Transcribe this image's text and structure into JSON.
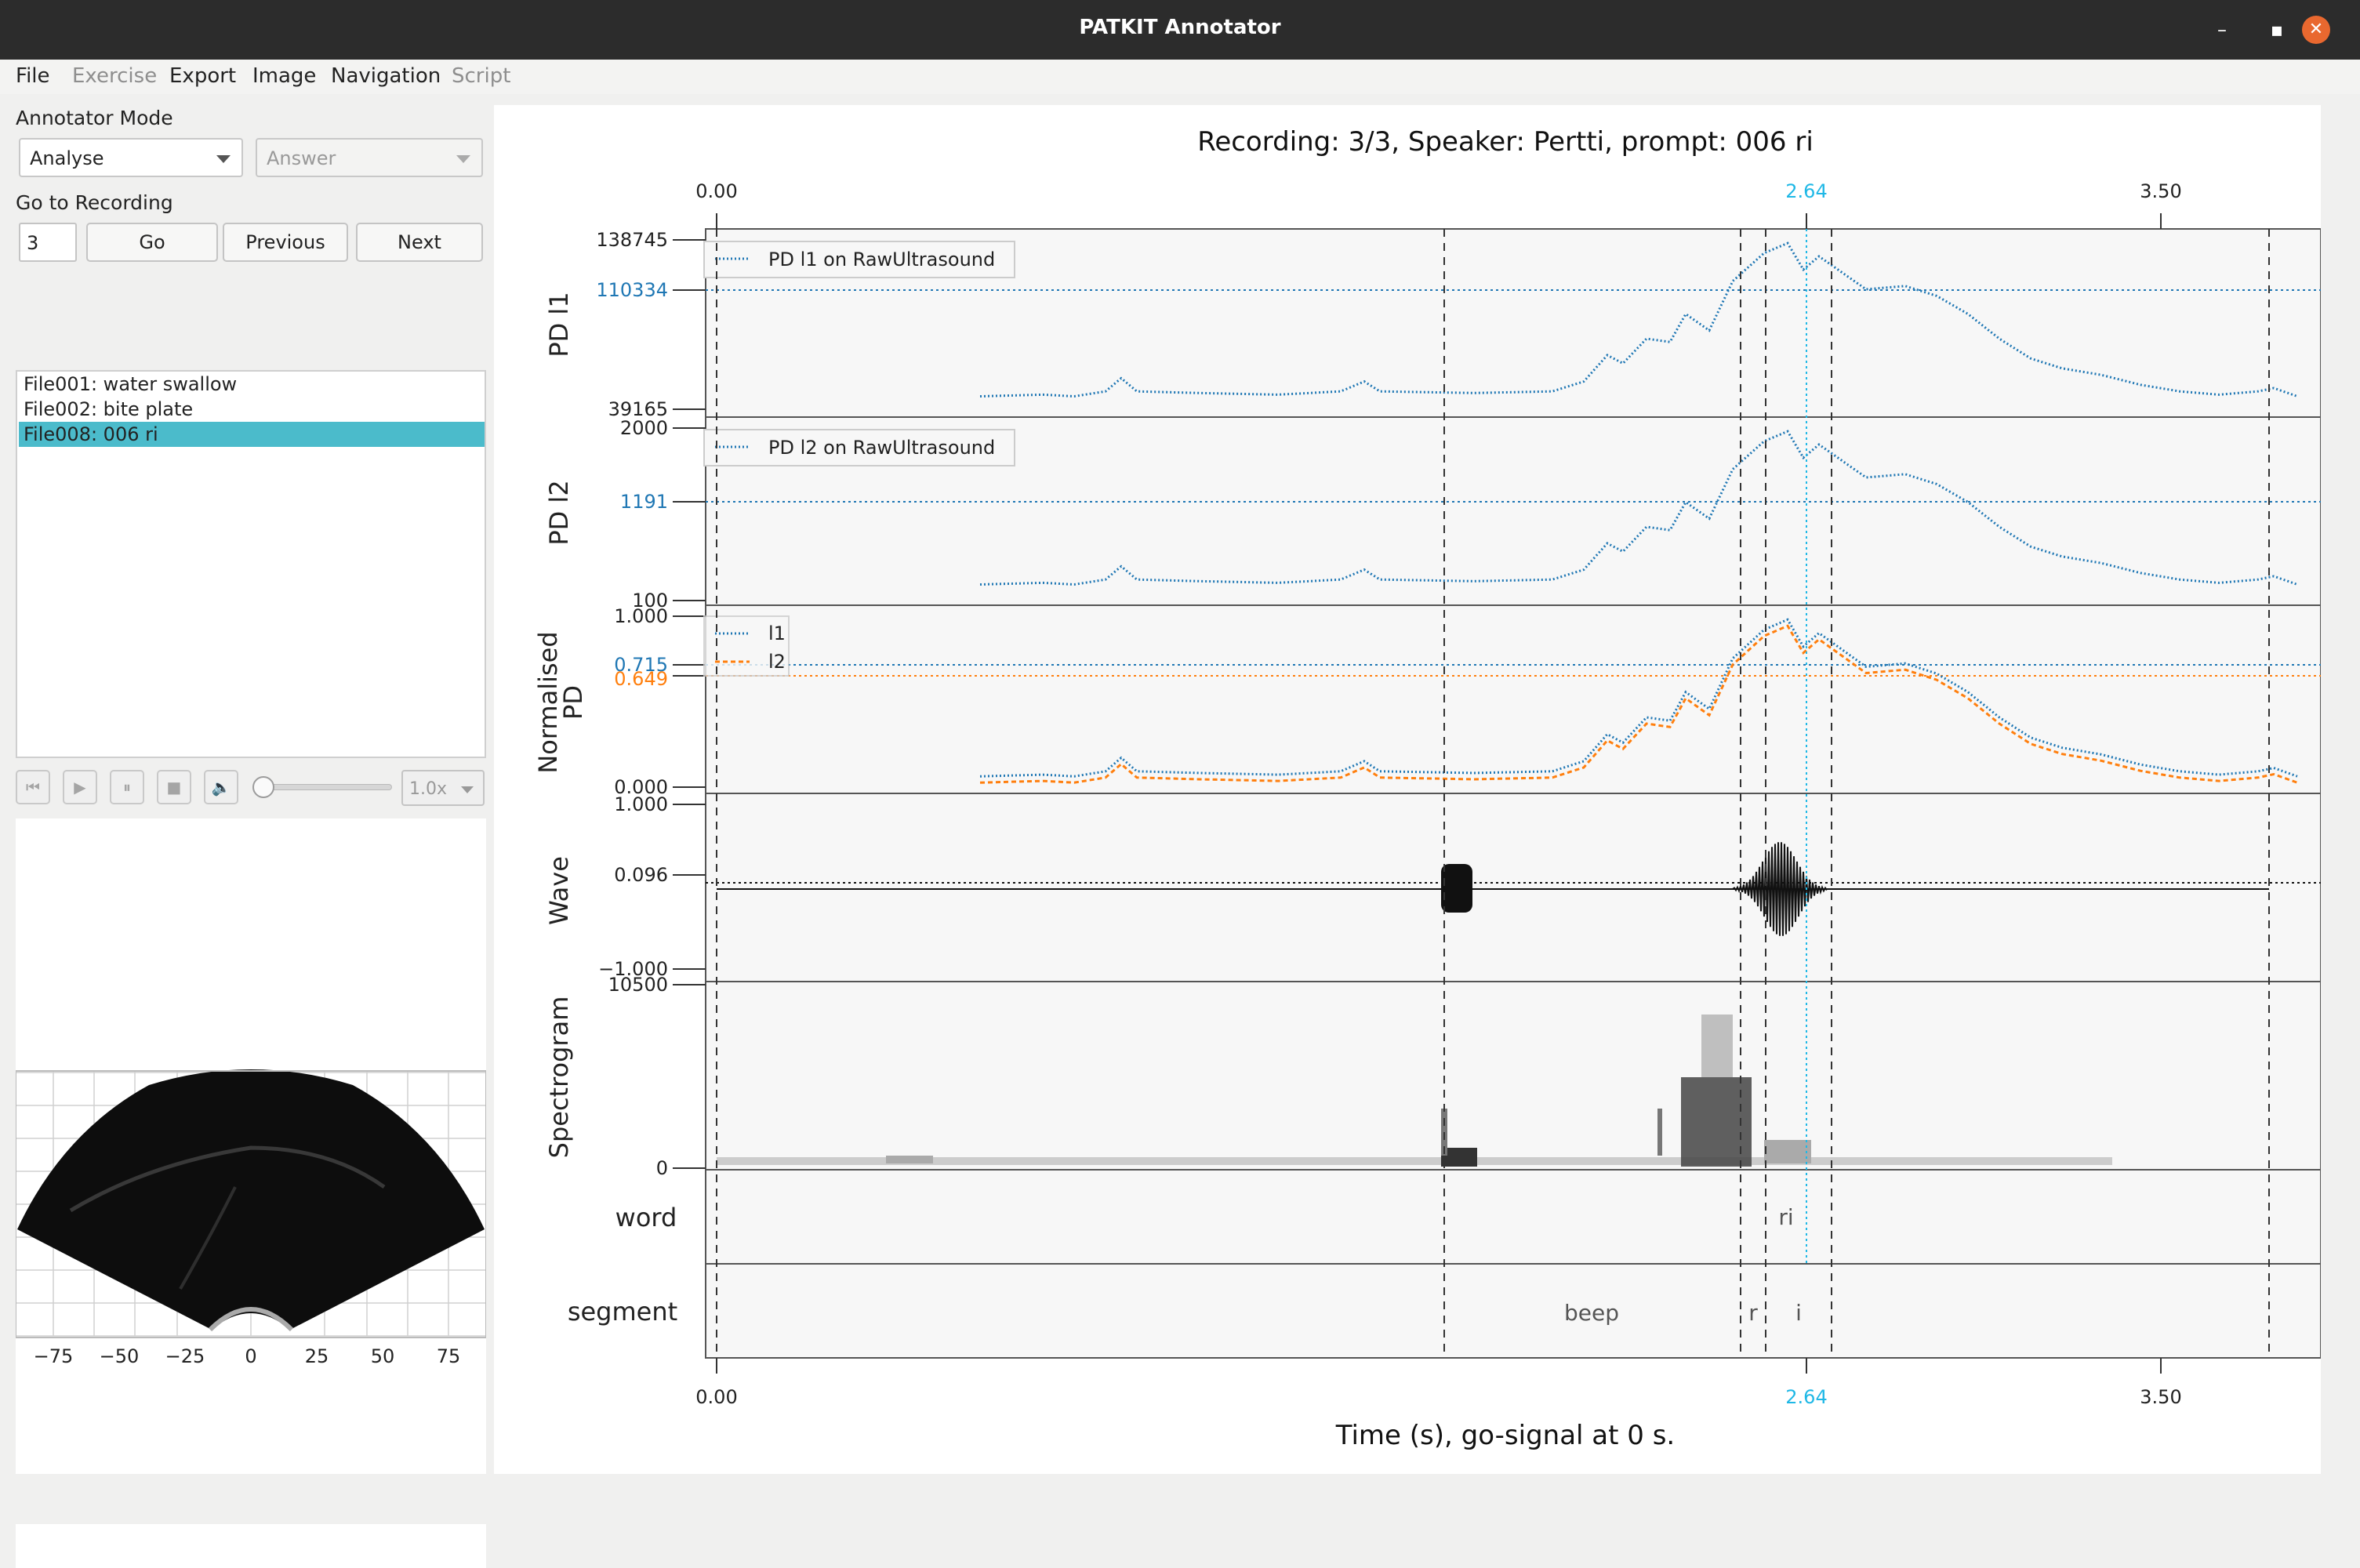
{
  "window": {
    "title": "PATKIT Annotator"
  },
  "menubar": [
    {
      "label": "File",
      "enabled": true
    },
    {
      "label": "Exercise",
      "enabled": false
    },
    {
      "label": "Export",
      "enabled": true
    },
    {
      "label": "Image",
      "enabled": true
    },
    {
      "label": "Navigation",
      "enabled": true
    },
    {
      "label": "Script",
      "enabled": false
    }
  ],
  "left": {
    "annotator_mode_label": "Annotator Mode",
    "mode_value": "Analyse",
    "answer_value": "Answer",
    "goto_label": "Go to Recording",
    "goto_value": "3",
    "go_label": "Go",
    "previous_label": "Previous",
    "next_label": "Next",
    "files": [
      "File001: water swallow",
      "File002: bite plate",
      "File008: 006   ri"
    ],
    "selected_index": 2,
    "speed": "1.0x",
    "ultrasound_ticks": [
      "−75",
      "−50",
      "−25",
      "0",
      "25",
      "50",
      "75"
    ]
  },
  "plot": {
    "title": "Recording: 3/3, Speaker: Pertti, prompt: 006   ri",
    "xlabel": "Time (s), go-signal at 0 s.",
    "xticks": [
      "0.00",
      "2.64",
      "3.50"
    ],
    "cursor_color": "#1fb8e6",
    "series_color": "#1f77b4",
    "series2_color": "#ff7f0e",
    "panels": [
      {
        "label": "PD l1",
        "ytop": "138745",
        "ymid": "110334",
        "ybot": "39165",
        "legend": "PD l1 on RawUltrasound"
      },
      {
        "label": "PD l2",
        "ytop": "2000",
        "ymid": "1191",
        "ybot": "100",
        "legend": "PD l2 on RawUltrasound"
      },
      {
        "label_line1": "Normalised",
        "label_line2": "PD",
        "ytop": "1.000",
        "ymid1": "0.715",
        "ymid2": "0.649",
        "ybot": "0.000",
        "legend1": "l1",
        "legend2": "l2"
      },
      {
        "label": "Wave",
        "ytop": "1.000",
        "ymid": "0.096",
        "ybot": "−1.000"
      },
      {
        "label": "Spectrogram",
        "ytop": "10500",
        "ybot": "0"
      },
      {
        "label": "word",
        "intervals": [
          "ri"
        ]
      },
      {
        "label": "segment",
        "intervals": [
          "beep",
          "r",
          "i"
        ]
      }
    ]
  }
}
